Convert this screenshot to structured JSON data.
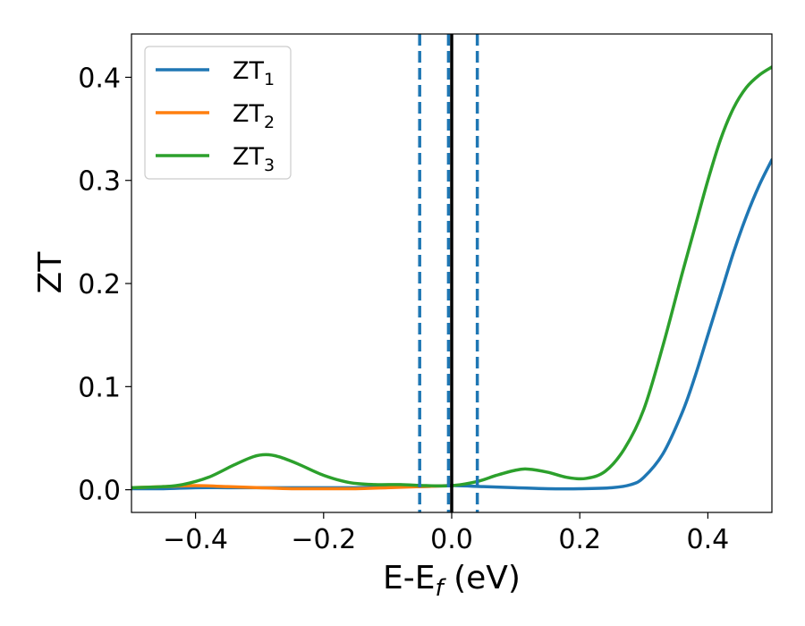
{
  "chart_data": {
    "type": "line",
    "xlabel": "E-E",
    "xlabel_sub": "f",
    "xlabel_unit": " (eV)",
    "ylabel": "ZT",
    "xlim": [
      -0.5,
      0.5
    ],
    "ylim": [
      -0.022,
      0.442
    ],
    "xticks": [
      -0.4,
      -0.2,
      0.0,
      0.2,
      0.4
    ],
    "xtick_labels": [
      "−0.4",
      "−0.2",
      "0.0",
      "0.2",
      "0.4"
    ],
    "yticks": [
      0.0,
      0.1,
      0.2,
      0.3,
      0.4
    ],
    "ytick_labels": [
      "0.0",
      "0.1",
      "0.2",
      "0.3",
      "0.4"
    ],
    "grid": false,
    "legend_position": "top-left",
    "series": [
      {
        "name": "ZT",
        "name_sub": "1",
        "color": "#1f77b4",
        "x": [
          -0.5,
          -0.45,
          -0.4,
          -0.35,
          -0.3,
          -0.25,
          -0.2,
          -0.15,
          -0.1,
          -0.05,
          0.0,
          0.05,
          0.1,
          0.15,
          0.2,
          0.25,
          0.28,
          0.3,
          0.33,
          0.36,
          0.38,
          0.4,
          0.42,
          0.44,
          0.46,
          0.48,
          0.5
        ],
        "y": [
          0.001,
          0.001,
          0.002,
          0.002,
          0.002,
          0.002,
          0.002,
          0.002,
          0.003,
          0.003,
          0.004,
          0.003,
          0.002,
          0.001,
          0.001,
          0.002,
          0.005,
          0.012,
          0.035,
          0.075,
          0.11,
          0.15,
          0.19,
          0.23,
          0.265,
          0.295,
          0.32
        ]
      },
      {
        "name": "ZT",
        "name_sub": "2",
        "color": "#ff7f0e",
        "x": [
          -0.5,
          -0.45,
          -0.4,
          -0.35,
          -0.3,
          -0.25,
          -0.2,
          -0.15,
          -0.1,
          -0.05,
          0.0
        ],
        "y": [
          0.002,
          0.003,
          0.004,
          0.003,
          0.002,
          0.001,
          0.001,
          0.001,
          0.002,
          0.003,
          0.004
        ]
      },
      {
        "name": "ZT",
        "name_sub": "3",
        "color": "#2ca02c",
        "x": [
          -0.5,
          -0.45,
          -0.42,
          -0.38,
          -0.34,
          -0.31,
          -0.29,
          -0.27,
          -0.24,
          -0.2,
          -0.16,
          -0.12,
          -0.08,
          -0.04,
          0.0,
          0.04,
          0.07,
          0.1,
          0.12,
          0.15,
          0.18,
          0.21,
          0.24,
          0.27,
          0.3,
          0.33,
          0.36,
          0.38,
          0.4,
          0.42,
          0.44,
          0.46,
          0.48,
          0.5
        ],
        "y": [
          0.002,
          0.003,
          0.005,
          0.012,
          0.024,
          0.032,
          0.034,
          0.032,
          0.025,
          0.014,
          0.007,
          0.005,
          0.005,
          0.004,
          0.004,
          0.008,
          0.014,
          0.019,
          0.02,
          0.017,
          0.012,
          0.011,
          0.018,
          0.04,
          0.078,
          0.14,
          0.21,
          0.255,
          0.3,
          0.34,
          0.37,
          0.39,
          0.402,
          0.41
        ]
      }
    ],
    "vlines": [
      {
        "x": -0.05,
        "style": "dashed",
        "color": "#1f77b4"
      },
      {
        "x": -0.005,
        "style": "dashed",
        "color": "#1f77b4"
      },
      {
        "x": 0.04,
        "style": "dashed",
        "color": "#1f77b4"
      },
      {
        "x": 0.0,
        "style": "solid",
        "color": "#000000"
      }
    ]
  }
}
